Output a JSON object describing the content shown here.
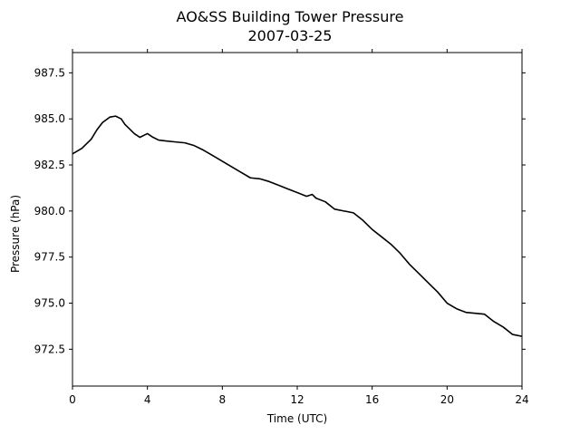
{
  "chart_data": {
    "type": "line",
    "title": "AO&SS Building Tower Pressure",
    "subtitle": "2007-03-25",
    "xlabel": "Time (UTC)",
    "ylabel": "Pressure (hPa)",
    "xlim": [
      0,
      24
    ],
    "ylim": [
      970.5,
      988.6
    ],
    "xticks": [
      0,
      4,
      8,
      12,
      16,
      20,
      24
    ],
    "xtick_labels": [
      "0",
      "4",
      "8",
      "12",
      "16",
      "20",
      "24"
    ],
    "yticks": [
      972.5,
      975.0,
      977.5,
      980.0,
      982.5,
      985.0,
      987.5
    ],
    "ytick_labels": [
      "972.5",
      "975.0",
      "977.5",
      "980.0",
      "982.5",
      "985.0",
      "987.5"
    ],
    "grid": false,
    "series": [
      {
        "color": "#000000",
        "x": [
          0.0,
          0.5,
          1.0,
          1.3,
          1.6,
          2.0,
          2.3,
          2.6,
          2.8,
          3.0,
          3.3,
          3.6,
          4.0,
          4.3,
          4.6,
          5.0,
          5.5,
          6.0,
          6.5,
          7.0,
          7.5,
          8.0,
          8.5,
          9.0,
          9.5,
          10.0,
          10.5,
          11.0,
          11.5,
          12.0,
          12.5,
          12.8,
          13.0,
          13.5,
          14.0,
          14.5,
          15.0,
          15.5,
          16.0,
          16.5,
          17.0,
          17.5,
          18.0,
          18.5,
          19.0,
          19.5,
          20.0,
          20.5,
          21.0,
          21.5,
          22.0,
          22.5,
          23.0,
          23.5,
          24.0
        ],
        "y": [
          983.1,
          983.4,
          983.9,
          984.4,
          984.8,
          985.1,
          985.15,
          985.0,
          984.7,
          984.5,
          984.2,
          984.0,
          984.2,
          984.0,
          983.85,
          983.8,
          983.75,
          983.7,
          983.55,
          983.3,
          983.0,
          982.7,
          982.4,
          982.1,
          981.8,
          981.75,
          981.6,
          981.4,
          981.2,
          981.0,
          980.8,
          980.9,
          980.7,
          980.5,
          980.1,
          980.0,
          979.9,
          979.5,
          979.0,
          978.6,
          978.2,
          977.7,
          977.1,
          976.6,
          976.1,
          975.6,
          975.0,
          974.7,
          974.5,
          974.45,
          974.4,
          974.0,
          973.7,
          973.3,
          973.2
        ]
      }
    ]
  }
}
